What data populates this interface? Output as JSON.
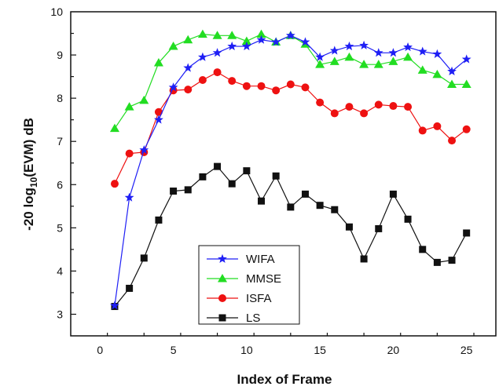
{
  "chart_data": {
    "type": "line",
    "xlabel": "Index of Frame",
    "ylabel_main": "-20 log",
    "ylabel_sub": "10",
    "ylabel_rest": "(EVM) dB",
    "xlim": [
      -2,
      27
    ],
    "ylim": [
      2.5,
      10
    ],
    "xticks": [
      0,
      5,
      10,
      15,
      20,
      25
    ],
    "yticks": [
      3,
      4,
      5,
      6,
      7,
      8,
      9,
      10
    ],
    "grid": false,
    "legend_position": "bottom-center",
    "x": [
      1,
      2,
      3,
      4,
      5,
      6,
      7,
      8,
      9,
      10,
      11,
      12,
      13,
      14,
      15,
      16,
      17,
      18,
      19,
      20,
      21,
      22,
      23,
      24,
      25
    ],
    "series": [
      {
        "name": "WIFA",
        "color": "#1f1ff5",
        "marker": "star",
        "values": [
          3.2,
          5.7,
          6.8,
          7.5,
          8.25,
          8.7,
          8.95,
          9.05,
          9.2,
          9.2,
          9.35,
          9.3,
          9.45,
          9.3,
          8.95,
          9.1,
          9.2,
          9.22,
          9.05,
          9.05,
          9.18,
          9.08,
          9.02,
          8.62,
          8.9
        ]
      },
      {
        "name": "MMSE",
        "color": "#22dd22",
        "marker": "triangle",
        "values": [
          7.3,
          7.8,
          7.95,
          8.82,
          9.2,
          9.35,
          9.48,
          9.45,
          9.45,
          9.32,
          9.48,
          9.3,
          9.45,
          9.25,
          8.78,
          8.85,
          8.95,
          8.78,
          8.78,
          8.85,
          8.95,
          8.65,
          8.55,
          8.32,
          8.32
        ]
      },
      {
        "name": "ISFA",
        "color": "#ee1111",
        "marker": "circle",
        "values": [
          6.02,
          6.72,
          6.75,
          7.68,
          8.18,
          8.2,
          8.42,
          8.6,
          8.4,
          8.28,
          8.28,
          8.18,
          8.32,
          8.25,
          7.9,
          7.65,
          7.8,
          7.65,
          7.85,
          7.82,
          7.8,
          7.25,
          7.35,
          7.02,
          7.28
        ]
      },
      {
        "name": "LS",
        "color": "#111111",
        "marker": "square",
        "values": [
          3.18,
          3.6,
          4.3,
          5.18,
          5.85,
          5.88,
          6.18,
          6.42,
          6.02,
          6.32,
          5.62,
          6.2,
          5.48,
          5.78,
          5.52,
          5.42,
          5.02,
          4.28,
          4.98,
          5.78,
          5.2,
          4.5,
          4.2,
          4.25,
          4.88
        ]
      }
    ]
  }
}
